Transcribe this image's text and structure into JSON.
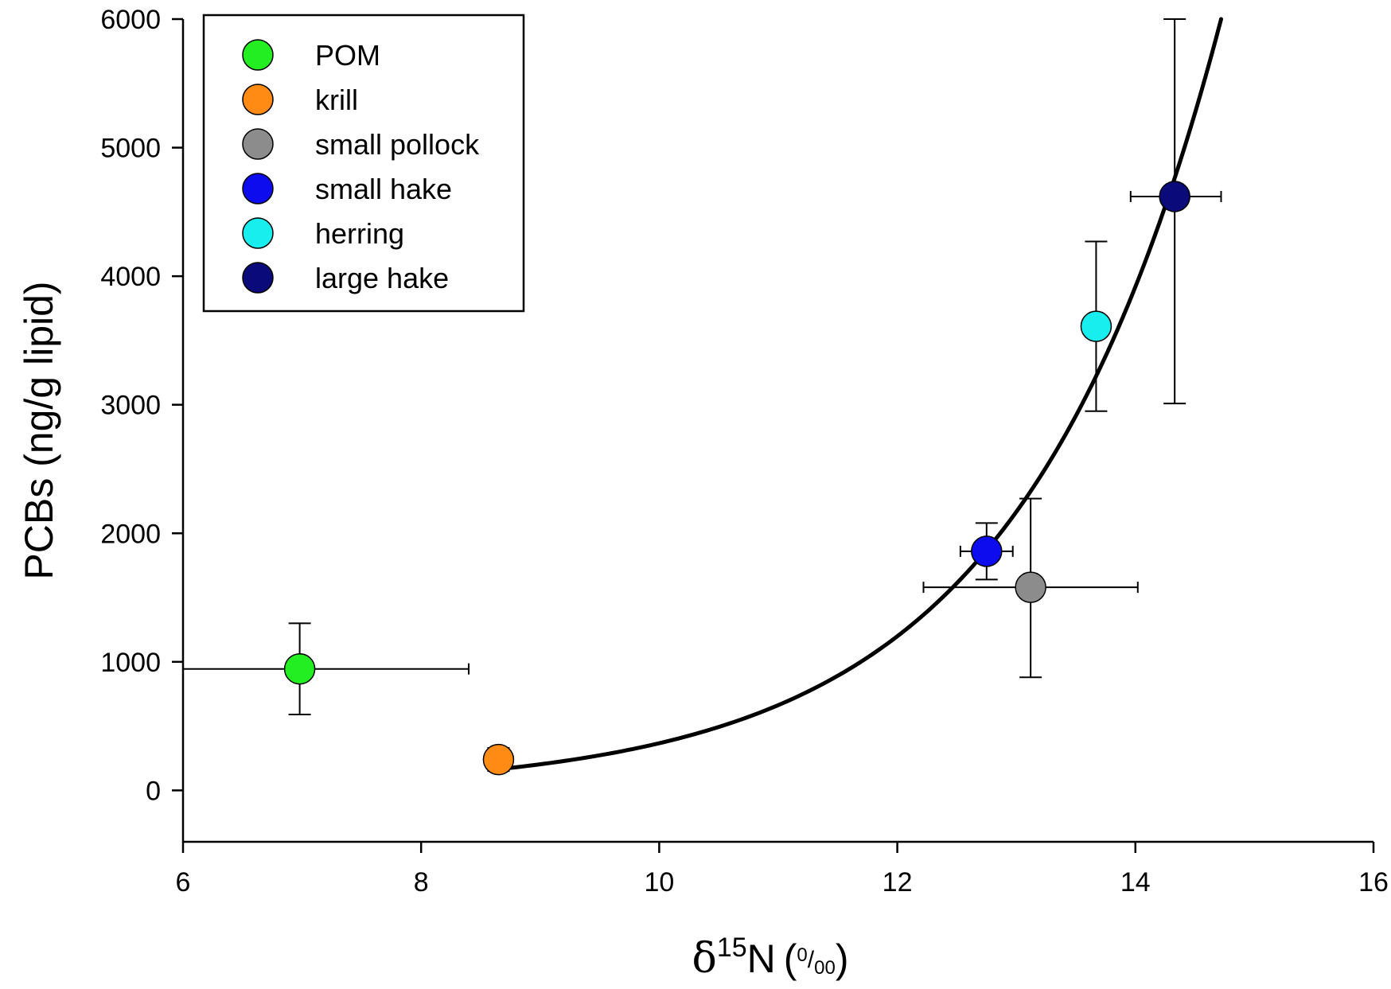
{
  "chart_data": {
    "type": "scatter",
    "title": "",
    "xlabel": {
      "delta": "δ",
      "superscript": "15",
      "element": "N",
      "open": "(",
      "unit_num": "0",
      "unit_slash": "/",
      "unit_den": "00",
      "close": ")"
    },
    "ylabel": "PCBs (ng/g lipid)",
    "xlim": [
      6,
      16
    ],
    "ylim": [
      -400,
      6000
    ],
    "xticks": [
      6,
      8,
      10,
      12,
      14,
      16
    ],
    "yticks": [
      0,
      1000,
      2000,
      3000,
      4000,
      5000,
      6000
    ],
    "grid": false,
    "legend_position": "top-left",
    "series": [
      {
        "name": "POM",
        "color": "#22ee22",
        "x": 6.98,
        "y": 945,
        "xerr": [
          5.4,
          8.4
        ],
        "yerr": [
          590,
          1300
        ]
      },
      {
        "name": "krill",
        "color": "#ff8a14",
        "x": 8.65,
        "y": 240,
        "xerr": null,
        "yerr": [
          150,
          330
        ]
      },
      {
        "name": "small pollock",
        "color": "#8c8c8c",
        "x": 13.12,
        "y": 1580,
        "xerr": [
          12.22,
          14.02
        ],
        "yerr": [
          880,
          2270
        ]
      },
      {
        "name": "small hake",
        "color": "#0c0cee",
        "x": 12.75,
        "y": 1860,
        "xerr": [
          12.53,
          12.97
        ],
        "yerr": [
          1640,
          2080
        ]
      },
      {
        "name": "herring",
        "color": "#18eeee",
        "x": 13.67,
        "y": 3610,
        "xerr": null,
        "yerr": [
          2950,
          4270
        ]
      },
      {
        "name": "large hake",
        "color": "#0a0a7a",
        "x": 14.33,
        "y": 4620,
        "xerr": [
          13.96,
          14.72
        ],
        "yerr": [
          3010,
          6000
        ]
      }
    ],
    "fit": {
      "type": "exponential",
      "x_start": 8.65,
      "x_end": 14.72,
      "y_start": 165,
      "y_end": 6000
    }
  }
}
